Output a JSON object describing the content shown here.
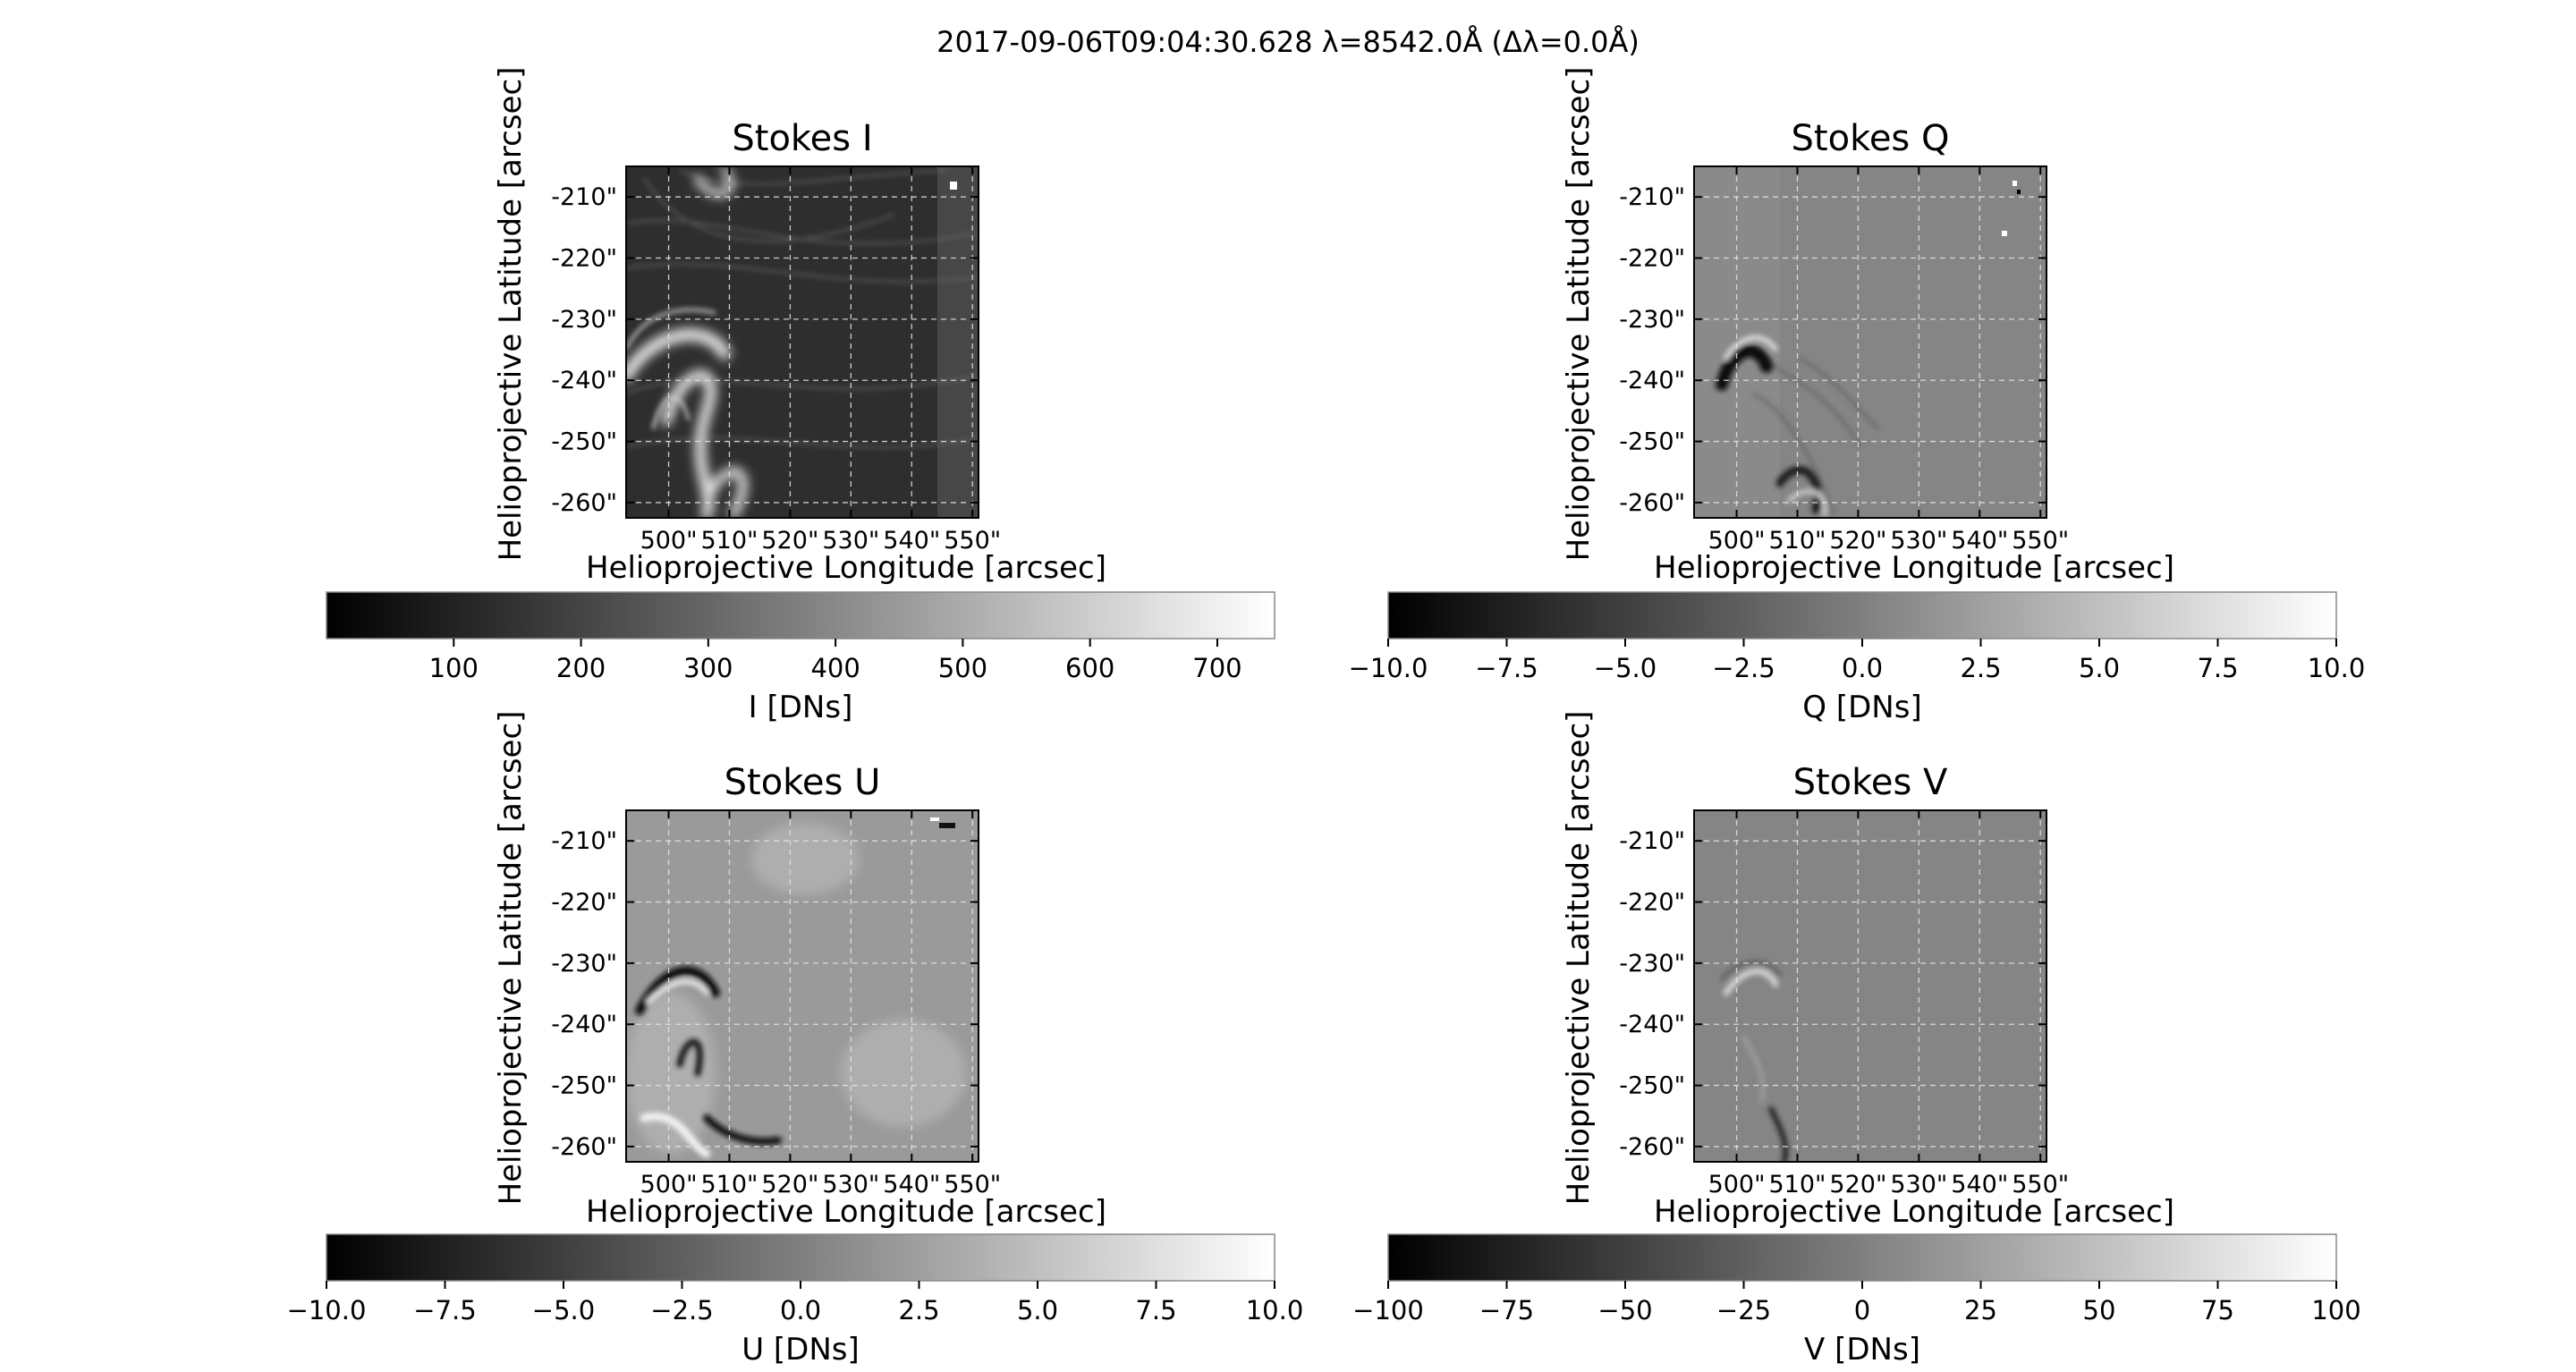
{
  "figure": {
    "suptitle": "2017-09-06T09:04:30.628 λ=8542.0Å (Δλ=0.0Å)"
  },
  "chart_data": [
    {
      "type": "heatmap",
      "title": "Stokes I",
      "xlabel": "Helioprojective Longitude [arcsec]",
      "ylabel": "Helioprojective Latitude [arcsec]",
      "xticks": [
        "500\"",
        "510\"",
        "520\"",
        "530\"",
        "540\"",
        "550\""
      ],
      "yticks": [
        "-210\"",
        "-220\"",
        "-230\"",
        "-240\"",
        "-250\"",
        "-260\""
      ],
      "xlim": [
        493,
        551
      ],
      "ylim": [
        -262.5,
        -205
      ],
      "grid": true,
      "colormap": "gray",
      "colorbar": {
        "label": "I [DNs]",
        "range": [
          0,
          745
        ],
        "ticks": [
          100,
          200,
          300,
          400,
          500,
          600,
          700
        ],
        "tick_labels": [
          "100",
          "200",
          "300",
          "400",
          "500",
          "600",
          "700"
        ]
      }
    },
    {
      "type": "heatmap",
      "title": "Stokes Q",
      "xlabel": "Helioprojective Longitude [arcsec]",
      "ylabel": "Helioprojective Latitude [arcsec]",
      "xticks": [
        "500\"",
        "510\"",
        "520\"",
        "530\"",
        "540\"",
        "550\""
      ],
      "yticks": [
        "-210\"",
        "-220\"",
        "-230\"",
        "-240\"",
        "-250\"",
        "-260\""
      ],
      "xlim": [
        493,
        551
      ],
      "ylim": [
        -262.5,
        -205
      ],
      "grid": true,
      "colormap": "gray",
      "colorbar": {
        "label": "Q [DNs]",
        "range": [
          -10,
          10
        ],
        "ticks": [
          -10,
          -7.5,
          -5,
          -2.5,
          0,
          2.5,
          5,
          7.5,
          10
        ],
        "tick_labels": [
          "−10.0",
          "−7.5",
          "−5.0",
          "−2.5",
          "0.0",
          "2.5",
          "5.0",
          "7.5",
          "10.0"
        ]
      }
    },
    {
      "type": "heatmap",
      "title": "Stokes U",
      "xlabel": "Helioprojective Longitude [arcsec]",
      "ylabel": "Helioprojective Latitude [arcsec]",
      "xticks": [
        "500\"",
        "510\"",
        "520\"",
        "530\"",
        "540\"",
        "550\""
      ],
      "yticks": [
        "-210\"",
        "-220\"",
        "-230\"",
        "-240\"",
        "-250\"",
        "-260\""
      ],
      "xlim": [
        493,
        551
      ],
      "ylim": [
        -262.5,
        -205
      ],
      "grid": true,
      "colormap": "gray",
      "colorbar": {
        "label": "U [DNs]",
        "range": [
          -10,
          10
        ],
        "ticks": [
          -10,
          -7.5,
          -5,
          -2.5,
          0,
          2.5,
          5,
          7.5,
          10
        ],
        "tick_labels": [
          "−10.0",
          "−7.5",
          "−5.0",
          "−2.5",
          "0.0",
          "2.5",
          "5.0",
          "7.5",
          "10.0"
        ]
      }
    },
    {
      "type": "heatmap",
      "title": "Stokes V",
      "xlabel": "Helioprojective Longitude [arcsec]",
      "ylabel": "Helioprojective Latitude [arcsec]",
      "xticks": [
        "500\"",
        "510\"",
        "520\"",
        "530\"",
        "540\"",
        "550\""
      ],
      "yticks": [
        "-210\"",
        "-220\"",
        "-230\"",
        "-240\"",
        "-250\"",
        "-260\""
      ],
      "xlim": [
        493,
        551
      ],
      "ylim": [
        -262.5,
        -205
      ],
      "grid": true,
      "colormap": "gray",
      "colorbar": {
        "label": "V [DNs]",
        "range": [
          -100,
          100
        ],
        "ticks": [
          -100,
          -75,
          -50,
          -25,
          0,
          25,
          50,
          75,
          100
        ],
        "tick_labels": [
          "−100",
          "−75",
          "−50",
          "−25",
          "0",
          "25",
          "50",
          "75",
          "100"
        ]
      }
    }
  ]
}
